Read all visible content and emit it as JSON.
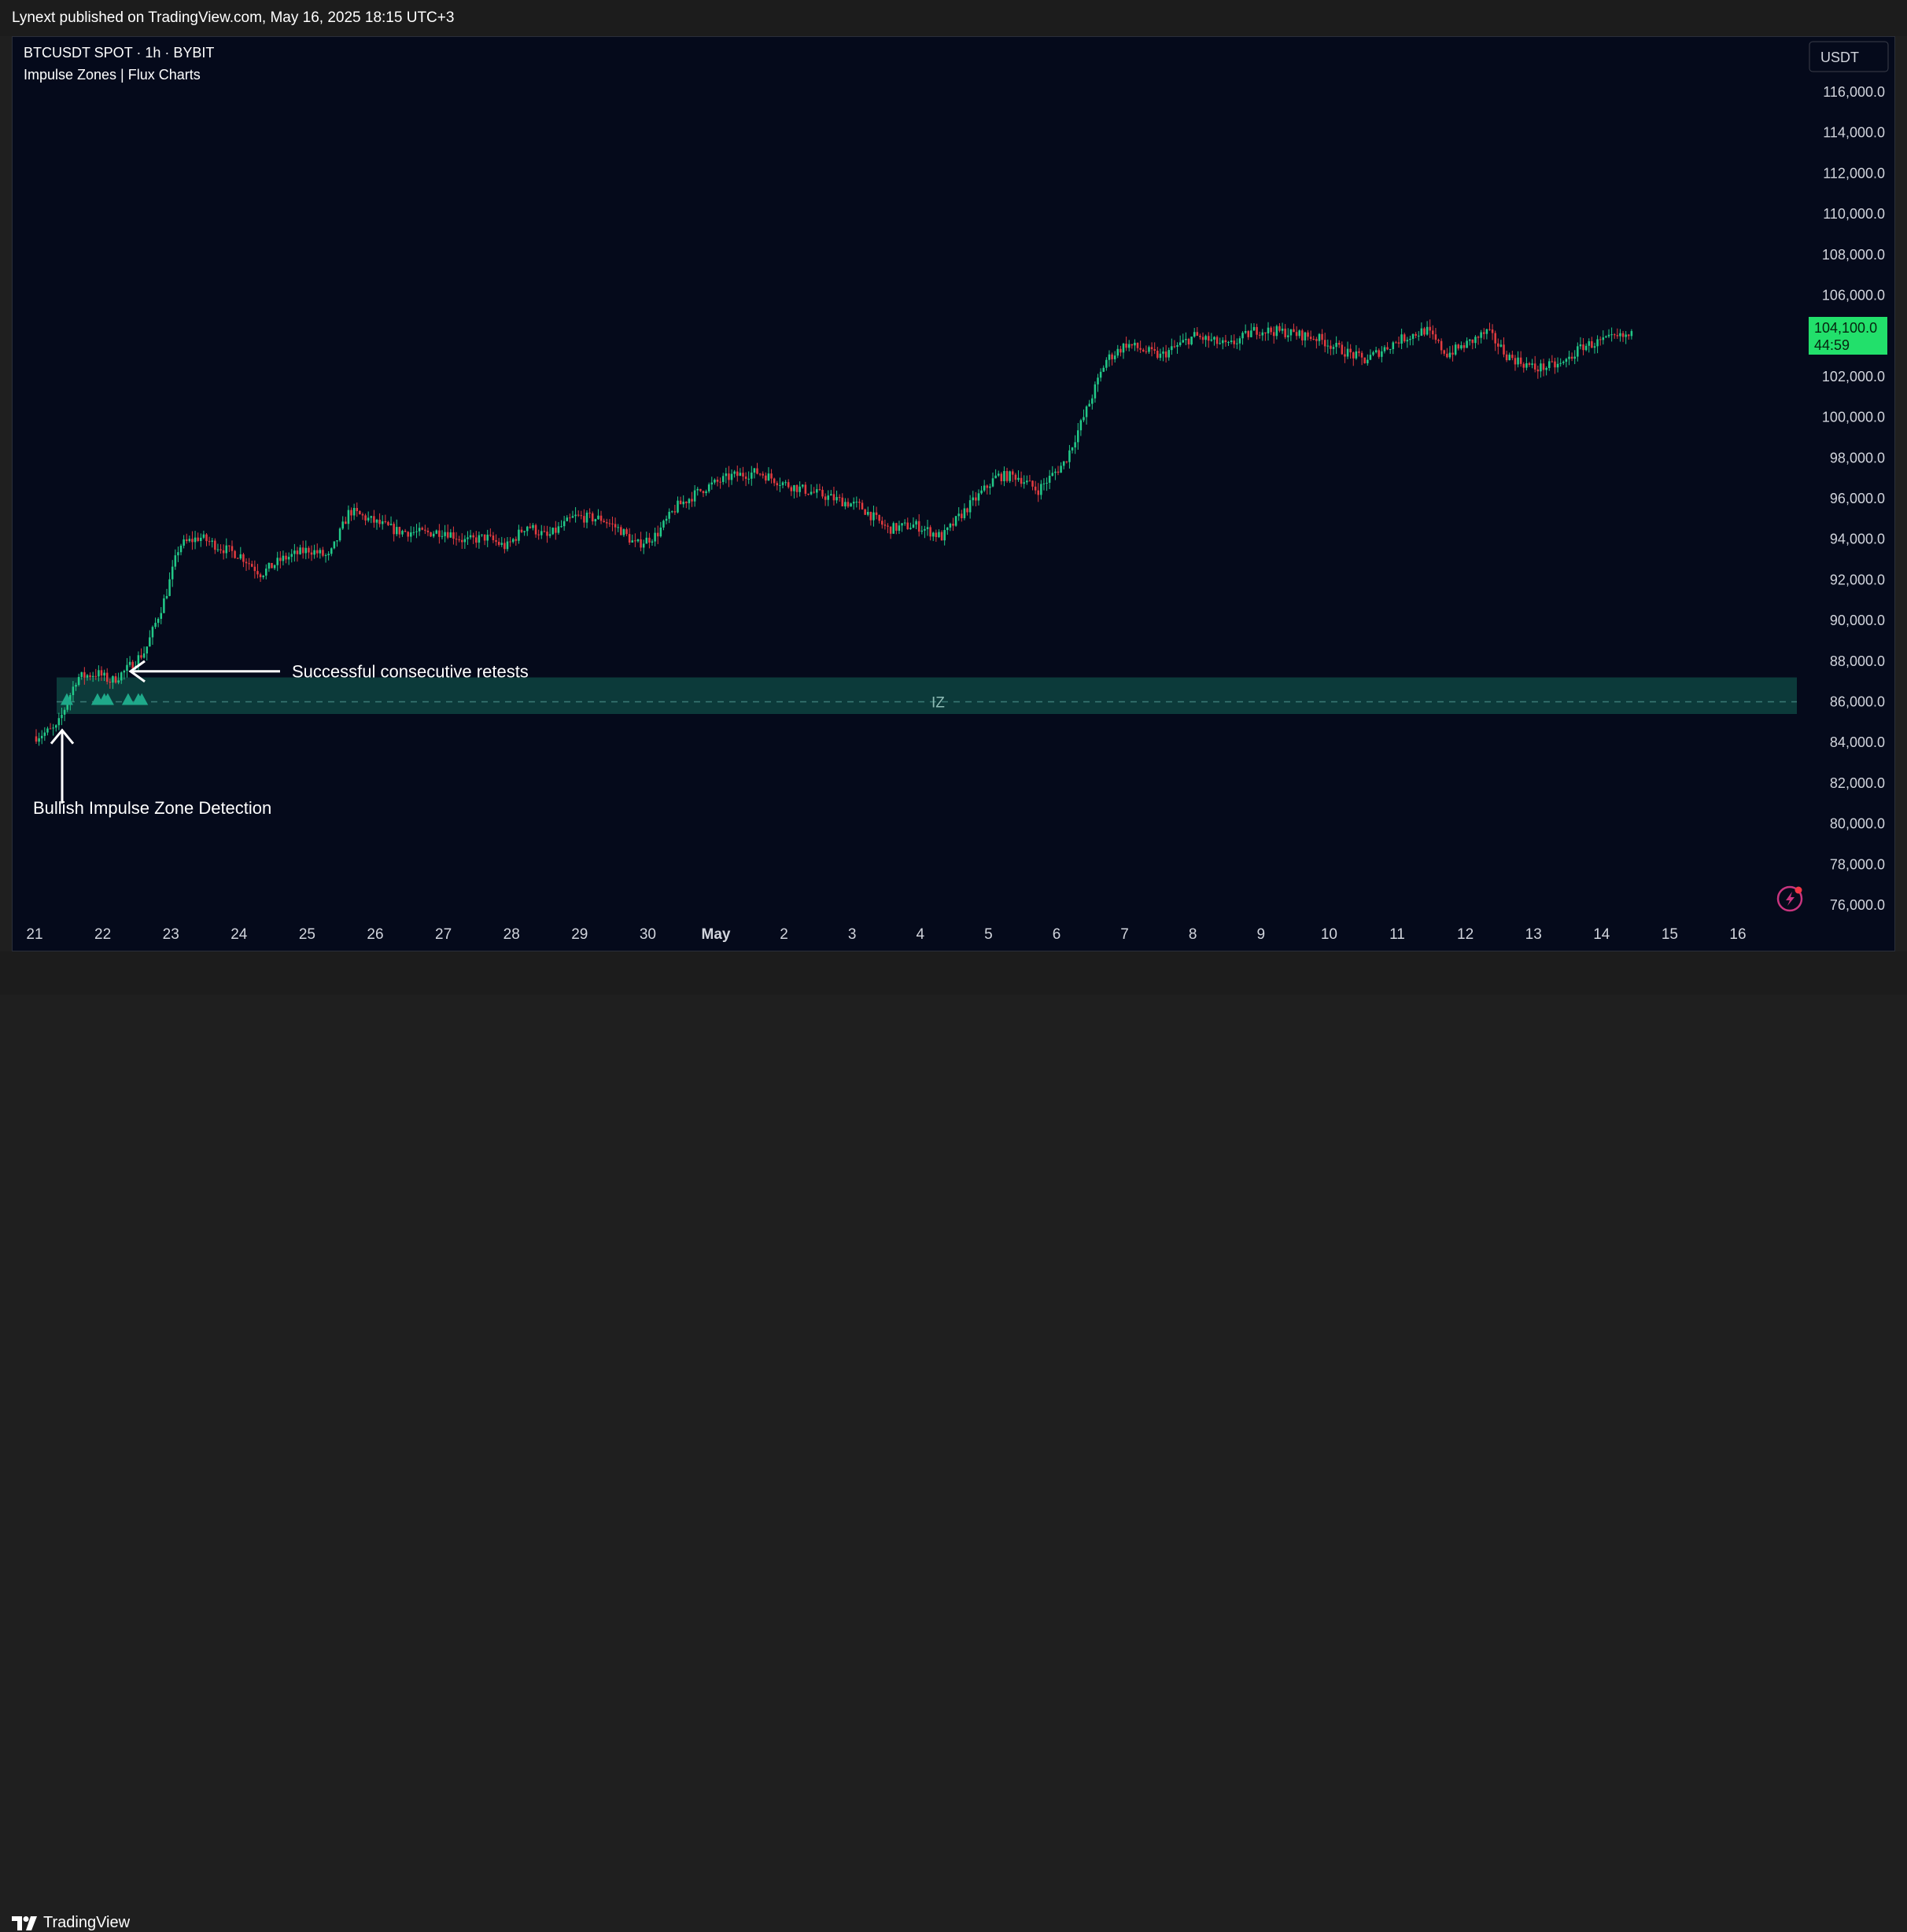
{
  "publish_line": "Lynext published on TradingView.com, May 16, 2025 18:15 UTC+3",
  "footer": {
    "brand": "TradingView"
  },
  "header": {
    "symbol_line": "BTCUSDT SPOT · 1h · BYBIT",
    "indicator_line": "Impulse Zones | Flux Charts",
    "currency_button": "USDT"
  },
  "colors": {
    "background": "#050a1b",
    "up": "#22c988",
    "down": "#e23b3f",
    "zone_fill": "#0c3a3a",
    "zone_line": "#3a7a76",
    "marker": "#1fa98a",
    "price_tag": "#22e06b"
  },
  "current_price": {
    "value": "104,100.0",
    "countdown": "44:59"
  },
  "annotations": {
    "retests": "Successful consecutive retests",
    "detection": "Bullish Impulse Zone Detection",
    "zone_label": "IZ"
  },
  "chart_data": {
    "type": "candlestick",
    "y_axis": {
      "ticks": [
        "116,000.0",
        "114,000.0",
        "112,000.0",
        "110,000.0",
        "108,000.0",
        "106,000.0",
        "104,000.0",
        "102,000.0",
        "100,000.0",
        "98,000.0",
        "96,000.0",
        "94,000.0",
        "92,000.0",
        "90,000.0",
        "88,000.0",
        "86,000.0",
        "84,000.0",
        "82,000.0",
        "80,000.0",
        "78,000.0",
        "76,000.0"
      ],
      "range": [
        75000,
        117000
      ]
    },
    "x_axis": {
      "ticks": [
        "21",
        "22",
        "23",
        "24",
        "25",
        "26",
        "27",
        "28",
        "29",
        "30",
        "May",
        "2",
        "3",
        "4",
        "5",
        "6",
        "7",
        "8",
        "9",
        "10",
        "11",
        "12",
        "13",
        "14",
        "15",
        "16"
      ]
    },
    "price_path_close": [
      [
        0,
        84300
      ],
      [
        0.3,
        84700
      ],
      [
        0.6,
        87200
      ],
      [
        0.9,
        87400
      ],
      [
        1.1,
        87000
      ],
      [
        1.3,
        87500
      ],
      [
        1.6,
        88500
      ],
      [
        1.9,
        91200
      ],
      [
        2.1,
        93700
      ],
      [
        2.4,
        94100
      ],
      [
        2.7,
        93600
      ],
      [
        3.0,
        93200
      ],
      [
        3.3,
        92300
      ],
      [
        3.6,
        93000
      ],
      [
        4.0,
        93500
      ],
      [
        4.3,
        93100
      ],
      [
        4.6,
        95400
      ],
      [
        5.0,
        94800
      ],
      [
        5.3,
        94400
      ],
      [
        5.7,
        94300
      ],
      [
        6.0,
        94400
      ],
      [
        6.3,
        93900
      ],
      [
        6.6,
        94100
      ],
      [
        6.9,
        93600
      ],
      [
        7.2,
        94700
      ],
      [
        7.5,
        94100
      ],
      [
        7.9,
        95100
      ],
      [
        8.3,
        95000
      ],
      [
        8.6,
        94400
      ],
      [
        8.8,
        93700
      ],
      [
        9.1,
        94200
      ],
      [
        9.4,
        95600
      ],
      [
        9.8,
        96500
      ],
      [
        10.2,
        97100
      ],
      [
        10.6,
        97300
      ],
      [
        11.0,
        96700
      ],
      [
        11.4,
        96300
      ],
      [
        11.8,
        95900
      ],
      [
        12.1,
        95600
      ],
      [
        12.5,
        94500
      ],
      [
        12.9,
        94700
      ],
      [
        13.3,
        94100
      ],
      [
        13.6,
        95300
      ],
      [
        14.1,
        97100
      ],
      [
        14.4,
        97100
      ],
      [
        14.7,
        96400
      ],
      [
        15.1,
        97800
      ],
      [
        15.4,
        100200
      ],
      [
        15.7,
        102800
      ],
      [
        16.0,
        103600
      ],
      [
        16.5,
        103000
      ],
      [
        17.0,
        104000
      ],
      [
        17.5,
        103500
      ],
      [
        17.9,
        104300
      ],
      [
        18.3,
        104200
      ],
      [
        18.8,
        103900
      ],
      [
        19.1,
        103400
      ],
      [
        19.5,
        102800
      ],
      [
        20.0,
        103800
      ],
      [
        20.4,
        104300
      ],
      [
        20.7,
        103100
      ],
      [
        21.0,
        103600
      ],
      [
        21.3,
        104200
      ],
      [
        21.6,
        103000
      ],
      [
        22.0,
        102400
      ],
      [
        22.4,
        102600
      ],
      [
        22.7,
        103500
      ],
      [
        23.2,
        103900
      ],
      [
        23.4,
        104000
      ]
    ],
    "impulse_zone": {
      "low": 85400,
      "high": 87200,
      "mid": 86000,
      "start_day": 0.3
    },
    "retest_markers": [
      0.45,
      0.9,
      1.0,
      1.05,
      1.35,
      1.5,
      1.55
    ],
    "last_price": 104100
  }
}
